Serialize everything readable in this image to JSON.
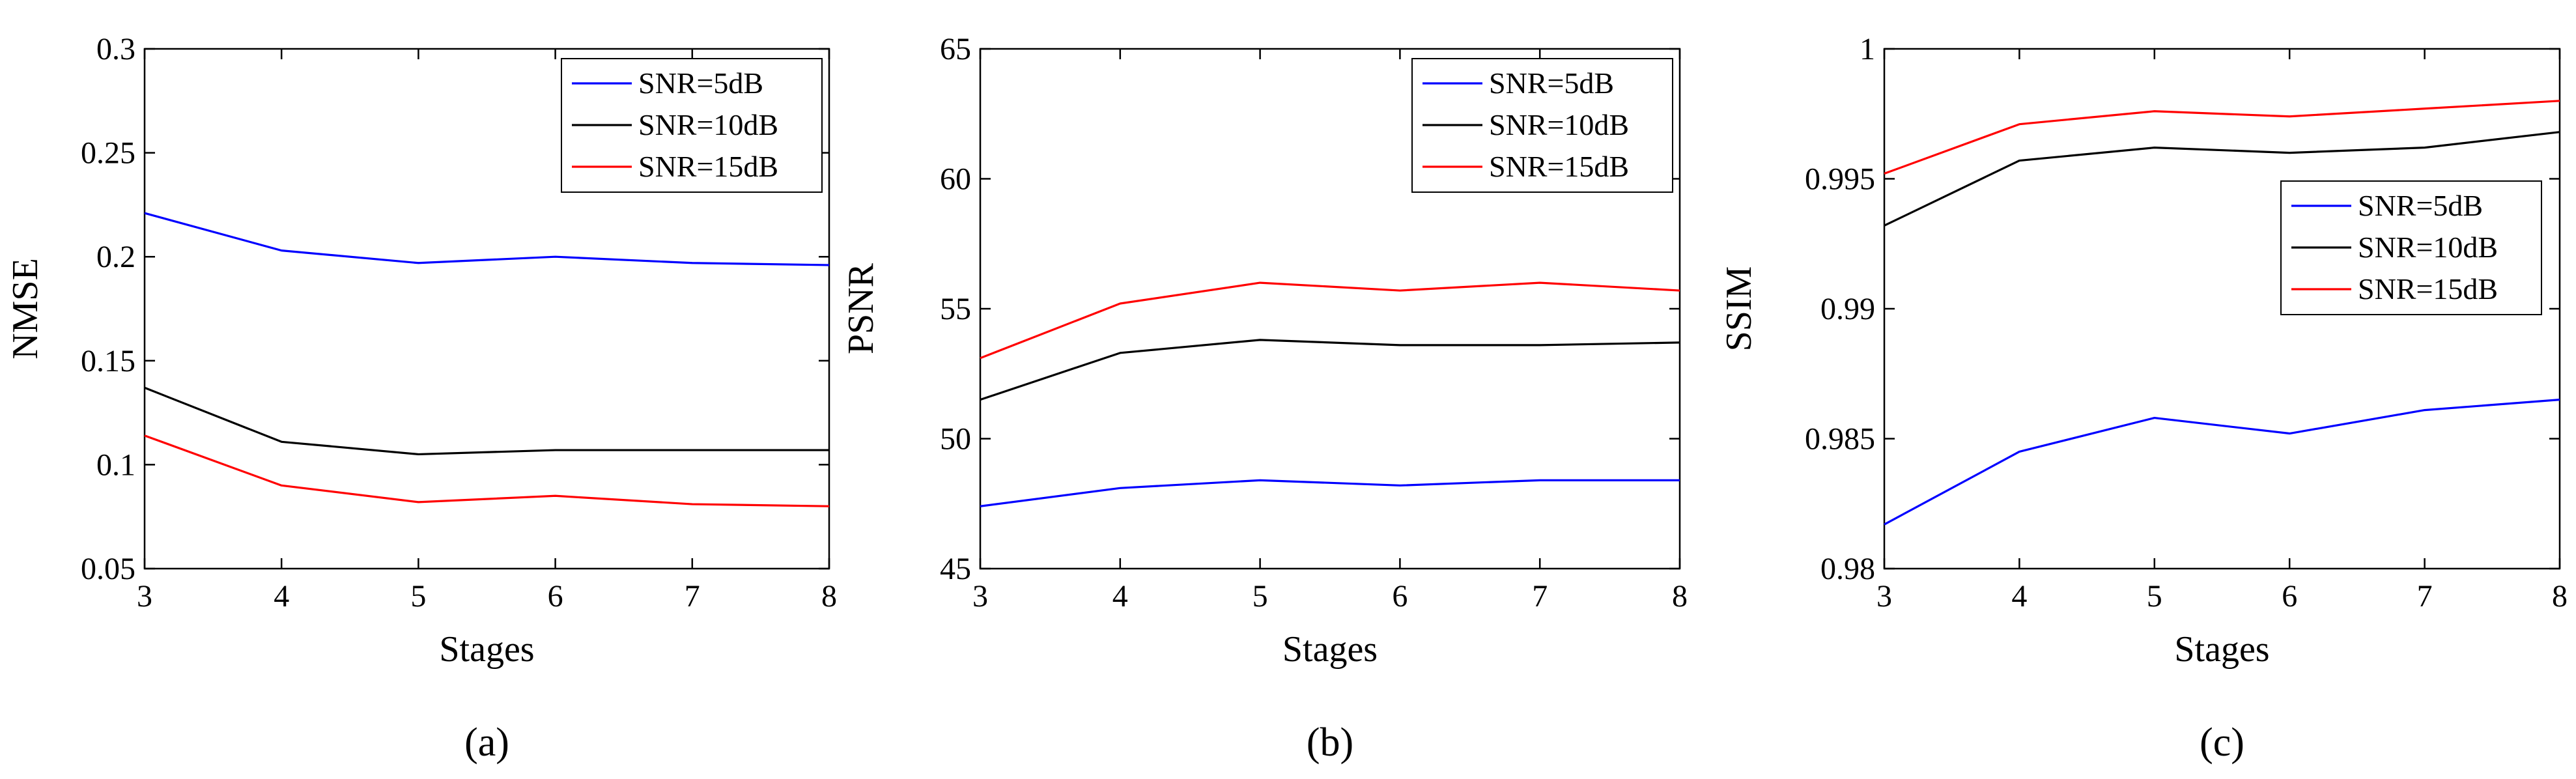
{
  "chart_data": [
    {
      "type": "line",
      "caption": "(a)",
      "xlabel": "Stages",
      "ylabel": "NMSE",
      "x": [
        3,
        4,
        5,
        6,
        7,
        8
      ],
      "xlim": [
        3,
        8
      ],
      "ylim": [
        0.05,
        0.3
      ],
      "xticks": [
        "3",
        "4",
        "5",
        "6",
        "7",
        "8"
      ],
      "yticks": [
        "0.05",
        "0.1",
        "0.15",
        "0.2",
        "0.25",
        "0.3"
      ],
      "legend_position": "top-right",
      "series": [
        {
          "name": "SNR=5dB",
          "color": "#0000ff",
          "values": [
            0.221,
            0.203,
            0.197,
            0.2,
            0.197,
            0.196
          ]
        },
        {
          "name": "SNR=10dB",
          "color": "#000000",
          "values": [
            0.137,
            0.111,
            0.105,
            0.107,
            0.107,
            0.107
          ]
        },
        {
          "name": "SNR=15dB",
          "color": "#ff0000",
          "values": [
            0.114,
            0.09,
            0.082,
            0.085,
            0.081,
            0.08
          ]
        }
      ]
    },
    {
      "type": "line",
      "caption": "(b)",
      "xlabel": "Stages",
      "ylabel": "PSNR",
      "x": [
        3,
        4,
        5,
        6,
        7,
        8
      ],
      "xlim": [
        3,
        8
      ],
      "ylim": [
        45,
        65
      ],
      "xticks": [
        "3",
        "4",
        "5",
        "6",
        "7",
        "8"
      ],
      "yticks": [
        "45",
        "50",
        "55",
        "60",
        "65"
      ],
      "legend_position": "top-right",
      "series": [
        {
          "name": "SNR=5dB",
          "color": "#0000ff",
          "values": [
            47.4,
            48.1,
            48.4,
            48.2,
            48.4,
            48.4
          ]
        },
        {
          "name": "SNR=10dB",
          "color": "#000000",
          "values": [
            51.5,
            53.3,
            53.8,
            53.6,
            53.6,
            53.7
          ]
        },
        {
          "name": "SNR=15dB",
          "color": "#ff0000",
          "values": [
            53.1,
            55.2,
            56.0,
            55.7,
            56.0,
            55.7
          ]
        }
      ]
    },
    {
      "type": "line",
      "caption": "(c)",
      "xlabel": "Stages",
      "ylabel": "SSIM",
      "x": [
        3,
        4,
        5,
        6,
        7,
        8
      ],
      "xlim": [
        3,
        8
      ],
      "ylim": [
        0.98,
        1.0
      ],
      "xticks": [
        "3",
        "4",
        "5",
        "6",
        "7",
        "8"
      ],
      "yticks": [
        "0.98",
        "0.985",
        "0.99",
        "0.995",
        "1"
      ],
      "legend_position": "right",
      "series": [
        {
          "name": "SNR=5dB",
          "color": "#0000ff",
          "values": [
            0.9817,
            0.9845,
            0.9858,
            0.9852,
            0.9861,
            0.9865
          ]
        },
        {
          "name": "SNR=10dB",
          "color": "#000000",
          "values": [
            0.9932,
            0.9957,
            0.9962,
            0.996,
            0.9962,
            0.9968
          ]
        },
        {
          "name": "SNR=15dB",
          "color": "#ff0000",
          "values": [
            0.9952,
            0.9971,
            0.9976,
            0.9974,
            0.9977,
            0.998
          ]
        }
      ]
    }
  ]
}
